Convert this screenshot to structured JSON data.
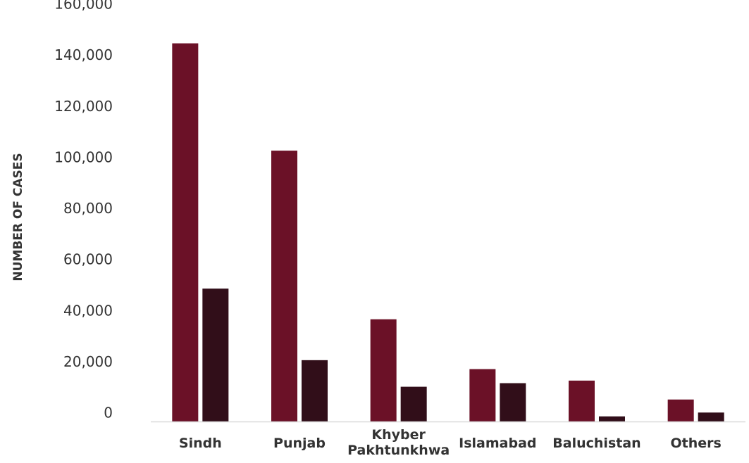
{
  "chart_data": {
    "type": "bar",
    "title": "",
    "xlabel": "",
    "ylabel": "NUMBER OF CASES",
    "ylim": [
      0,
      160000
    ],
    "yticks": [
      0,
      20000,
      40000,
      60000,
      80000,
      100000,
      120000,
      140000,
      160000
    ],
    "ytick_labels": [
      "0",
      "20,000",
      "40,000",
      "60,000",
      "80,000",
      "100,000",
      "120,000",
      "140,000",
      "160,000"
    ],
    "grid": false,
    "legend": "none",
    "categories": [
      [
        "Sindh"
      ],
      [
        "Punjab"
      ],
      [
        "Khyber",
        "Pakhtunkhwa"
      ],
      [
        "Islamabad"
      ],
      [
        "Baluchistan"
      ],
      [
        "Others"
      ]
    ],
    "series": [
      {
        "color": "#6B1127",
        "values": [
          148000,
          106000,
          40000,
          20500,
          16000,
          8600
        ]
      },
      {
        "color": "#310E19",
        "values": [
          52000,
          24000,
          13600,
          15000,
          2000,
          3500
        ]
      }
    ]
  }
}
